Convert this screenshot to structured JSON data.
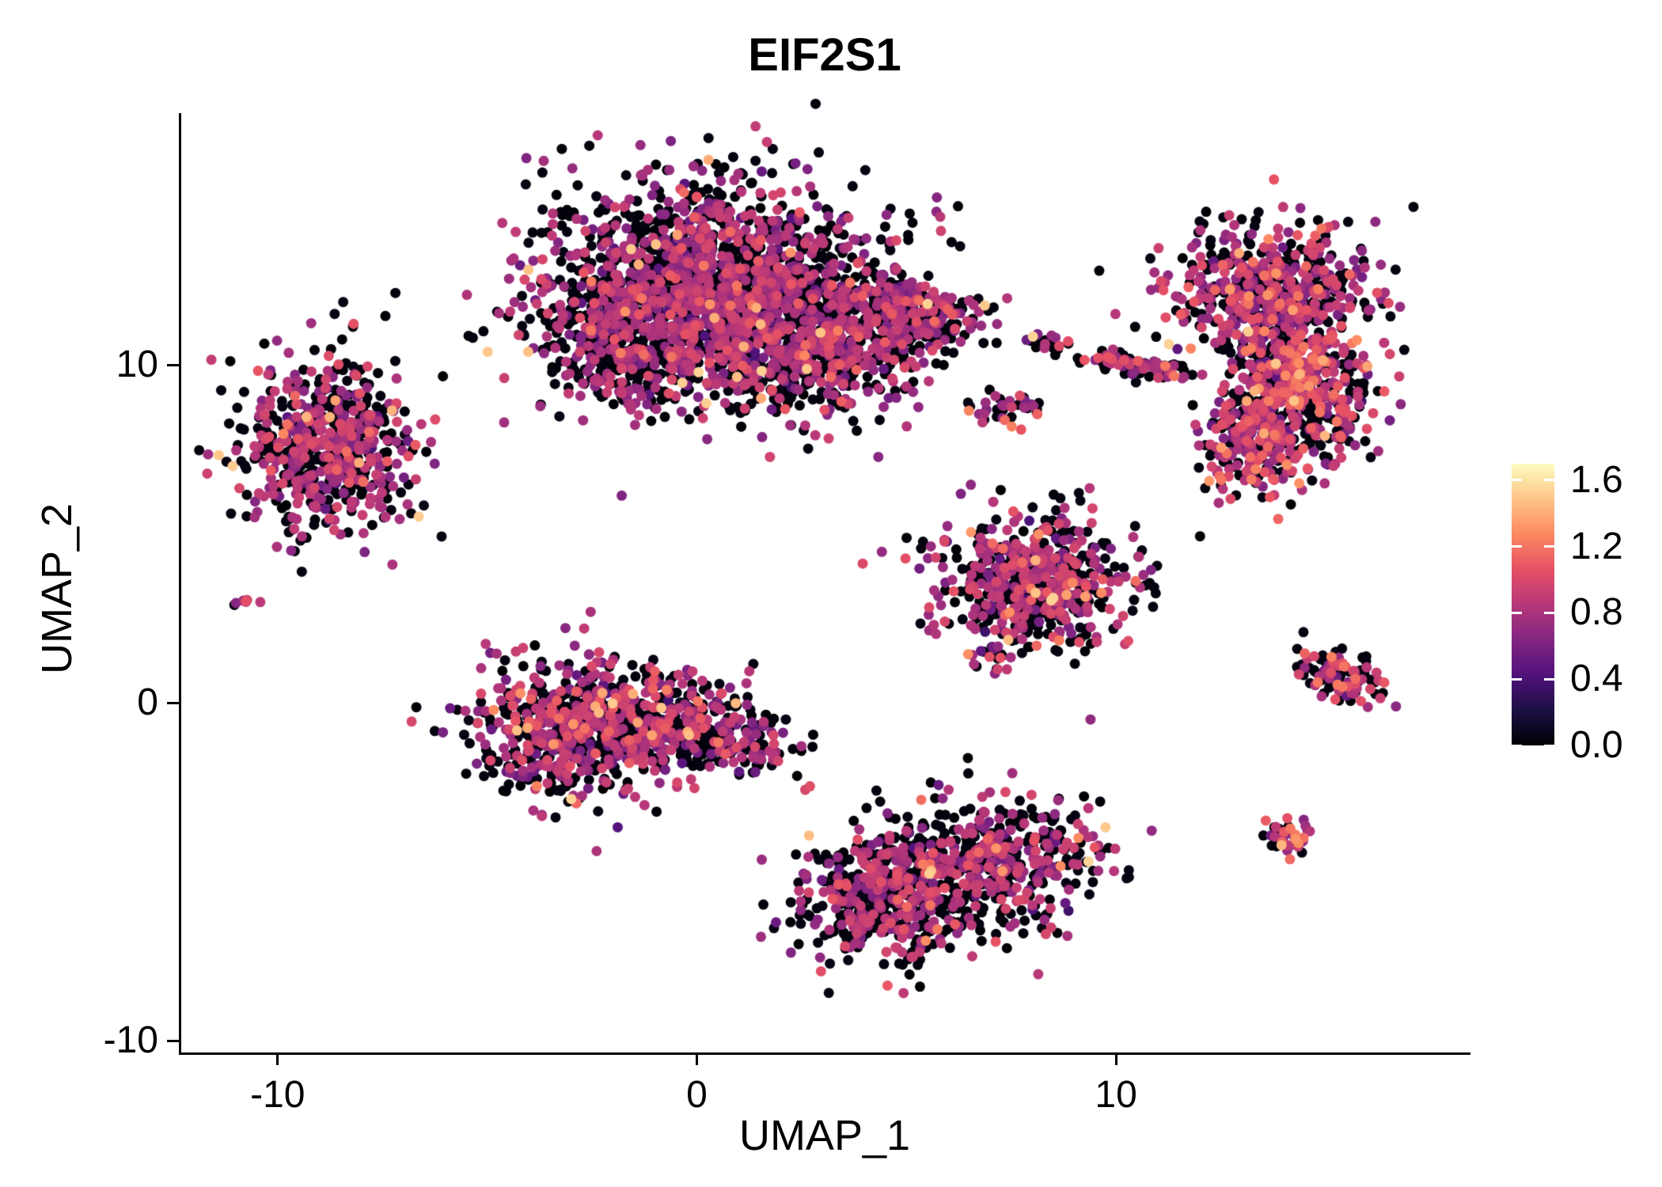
{
  "chart_data": {
    "type": "scatter",
    "title": "EIF2S1",
    "xlabel": "UMAP_1",
    "ylabel": "UMAP_2",
    "xlim": [
      -12.3,
      18.4
    ],
    "ylim": [
      -10.35,
      17.45
    ],
    "x_tick_values": [
      -10,
      0,
      10
    ],
    "x_tick_labels": [
      "-10",
      "0",
      "10"
    ],
    "y_tick_values": [
      -10,
      0,
      10
    ],
    "y_tick_labels": [
      "-10",
      "0",
      "10"
    ],
    "grid": false,
    "background": "#ffffff",
    "axis_color": "#000000",
    "point_radius_px": 6.5,
    "seed": 3,
    "colorbar": {
      "position": "right",
      "colormap": "magma",
      "domain": [
        0,
        1.7
      ],
      "tick_values": [
        0.0,
        0.4,
        0.8,
        1.2,
        1.6
      ],
      "tick_labels": [
        "0.0",
        "0.4",
        "0.8",
        "1.2",
        "1.6"
      ],
      "stops": [
        {
          "t": 0.0,
          "color": "#000004"
        },
        {
          "t": 0.125,
          "color": "#1c1044"
        },
        {
          "t": 0.25,
          "color": "#51127c"
        },
        {
          "t": 0.375,
          "color": "#832681"
        },
        {
          "t": 0.5,
          "color": "#b73779"
        },
        {
          "t": 0.625,
          "color": "#e65164"
        },
        {
          "t": 0.75,
          "color": "#fc8961"
        },
        {
          "t": 0.875,
          "color": "#fec488"
        },
        {
          "t": 1.0,
          "color": "#fcfdbf"
        }
      ]
    },
    "clusters": [
      {
        "name": "top-center-main",
        "cx": 0.3,
        "cy": 12.3,
        "sx": 2.0,
        "sy": 1.6,
        "rot": 0,
        "n": 1800,
        "p_zero": 0.52,
        "mu": 0.78,
        "sd": 0.14,
        "hot": 0.025
      },
      {
        "name": "top-center-lower",
        "cx": 2.8,
        "cy": 10.5,
        "sx": 1.3,
        "sy": 0.95,
        "rot": 0,
        "n": 600,
        "p_zero": 0.52,
        "mu": 0.78,
        "sd": 0.14,
        "hot": 0.03
      },
      {
        "name": "top-center-left-lobe",
        "cx": -1.7,
        "cy": 10.4,
        "sx": 0.85,
        "sy": 0.8,
        "rot": 0,
        "n": 260,
        "p_zero": 0.5,
        "mu": 0.78,
        "sd": 0.14,
        "hot": 0.03
      },
      {
        "name": "top-center-arm",
        "cx": 5.2,
        "cy": 11.6,
        "sx": 0.85,
        "sy": 0.5,
        "rot": -15,
        "n": 230,
        "p_zero": 0.45,
        "mu": 0.8,
        "sd": 0.15,
        "hot": 0.04
      },
      {
        "name": "left",
        "cx": -8.8,
        "cy": 7.6,
        "sx": 1.05,
        "sy": 1.25,
        "rot": 0,
        "n": 620,
        "p_zero": 0.5,
        "mu": 0.8,
        "sd": 0.15,
        "hot": 0.04
      },
      {
        "name": "left-tiny",
        "cx": -10.75,
        "cy": 3.0,
        "sx": 0.13,
        "sy": 0.1,
        "rot": 0,
        "n": 7,
        "p_zero": 0.25,
        "mu": 0.85,
        "sd": 0.2,
        "hot": 0.1
      },
      {
        "name": "center-left-a",
        "cx": -3.0,
        "cy": -0.8,
        "sx": 1.15,
        "sy": 1.0,
        "rot": 0,
        "n": 620,
        "p_zero": 0.5,
        "mu": 0.8,
        "sd": 0.16,
        "hot": 0.05
      },
      {
        "name": "center-left-b",
        "cx": -0.6,
        "cy": -0.5,
        "sx": 1.1,
        "sy": 0.75,
        "rot": 0,
        "n": 330,
        "p_zero": 0.52,
        "mu": 0.8,
        "sd": 0.15,
        "hot": 0.04
      },
      {
        "name": "center-left-tail",
        "cx": 1.3,
        "cy": -1.3,
        "sx": 0.55,
        "sy": 0.4,
        "rot": -20,
        "n": 70,
        "p_zero": 0.55,
        "mu": 0.78,
        "sd": 0.14,
        "hot": 0.03
      },
      {
        "name": "bottom-center-a",
        "cx": 4.6,
        "cy": -5.7,
        "sx": 1.1,
        "sy": 1.05,
        "rot": 0,
        "n": 460,
        "p_zero": 0.55,
        "mu": 0.8,
        "sd": 0.15,
        "hot": 0.04
      },
      {
        "name": "bottom-center-b",
        "cx": 7.2,
        "cy": -4.7,
        "sx": 1.3,
        "sy": 0.9,
        "rot": 10,
        "n": 460,
        "p_zero": 0.55,
        "mu": 0.8,
        "sd": 0.15,
        "hot": 0.04
      },
      {
        "name": "mid-right",
        "cx": 8.1,
        "cy": 3.5,
        "sx": 1.15,
        "sy": 1.05,
        "rot": 0,
        "n": 600,
        "p_zero": 0.45,
        "mu": 0.82,
        "sd": 0.16,
        "hot": 0.05
      },
      {
        "name": "small-upper-a",
        "cx": 8.4,
        "cy": 10.7,
        "sx": 0.28,
        "sy": 0.2,
        "rot": 0,
        "n": 22,
        "p_zero": 0.5,
        "mu": 0.8,
        "sd": 0.15,
        "hot": 0.05
      },
      {
        "name": "small-upper-b",
        "cx": 7.4,
        "cy": 8.7,
        "sx": 0.42,
        "sy": 0.28,
        "rot": 0,
        "n": 40,
        "p_zero": 0.5,
        "mu": 0.8,
        "sd": 0.15,
        "hot": 0.05
      },
      {
        "name": "streak",
        "cx": 10.5,
        "cy": 10.0,
        "sx": 0.7,
        "sy": 0.17,
        "rot": -12,
        "n": 90,
        "p_zero": 0.45,
        "mu": 0.82,
        "sd": 0.15,
        "hot": 0.06
      },
      {
        "name": "right-upper",
        "cx": 13.6,
        "cy": 12.2,
        "sx": 1.15,
        "sy": 1.05,
        "rot": 0,
        "n": 500,
        "p_zero": 0.4,
        "mu": 0.84,
        "sd": 0.17,
        "hot": 0.06
      },
      {
        "name": "right-mid",
        "cx": 14.4,
        "cy": 9.6,
        "sx": 0.85,
        "sy": 1.2,
        "rot": 8,
        "n": 460,
        "p_zero": 0.35,
        "mu": 0.86,
        "sd": 0.18,
        "hot": 0.08
      },
      {
        "name": "right-lower",
        "cx": 13.3,
        "cy": 7.8,
        "sx": 0.62,
        "sy": 0.85,
        "rot": 0,
        "n": 230,
        "p_zero": 0.38,
        "mu": 0.85,
        "sd": 0.17,
        "hot": 0.07
      },
      {
        "name": "right-small",
        "cx": 15.3,
        "cy": 0.8,
        "sx": 0.62,
        "sy": 0.33,
        "rot": -25,
        "n": 115,
        "p_zero": 0.45,
        "mu": 0.83,
        "sd": 0.16,
        "hot": 0.06
      },
      {
        "name": "bottom-right-dot",
        "cx": 14.1,
        "cy": -3.9,
        "sx": 0.28,
        "sy": 0.28,
        "rot": 0,
        "n": 38,
        "p_zero": 0.3,
        "mu": 0.95,
        "sd": 0.2,
        "hot": 0.2
      }
    ]
  }
}
